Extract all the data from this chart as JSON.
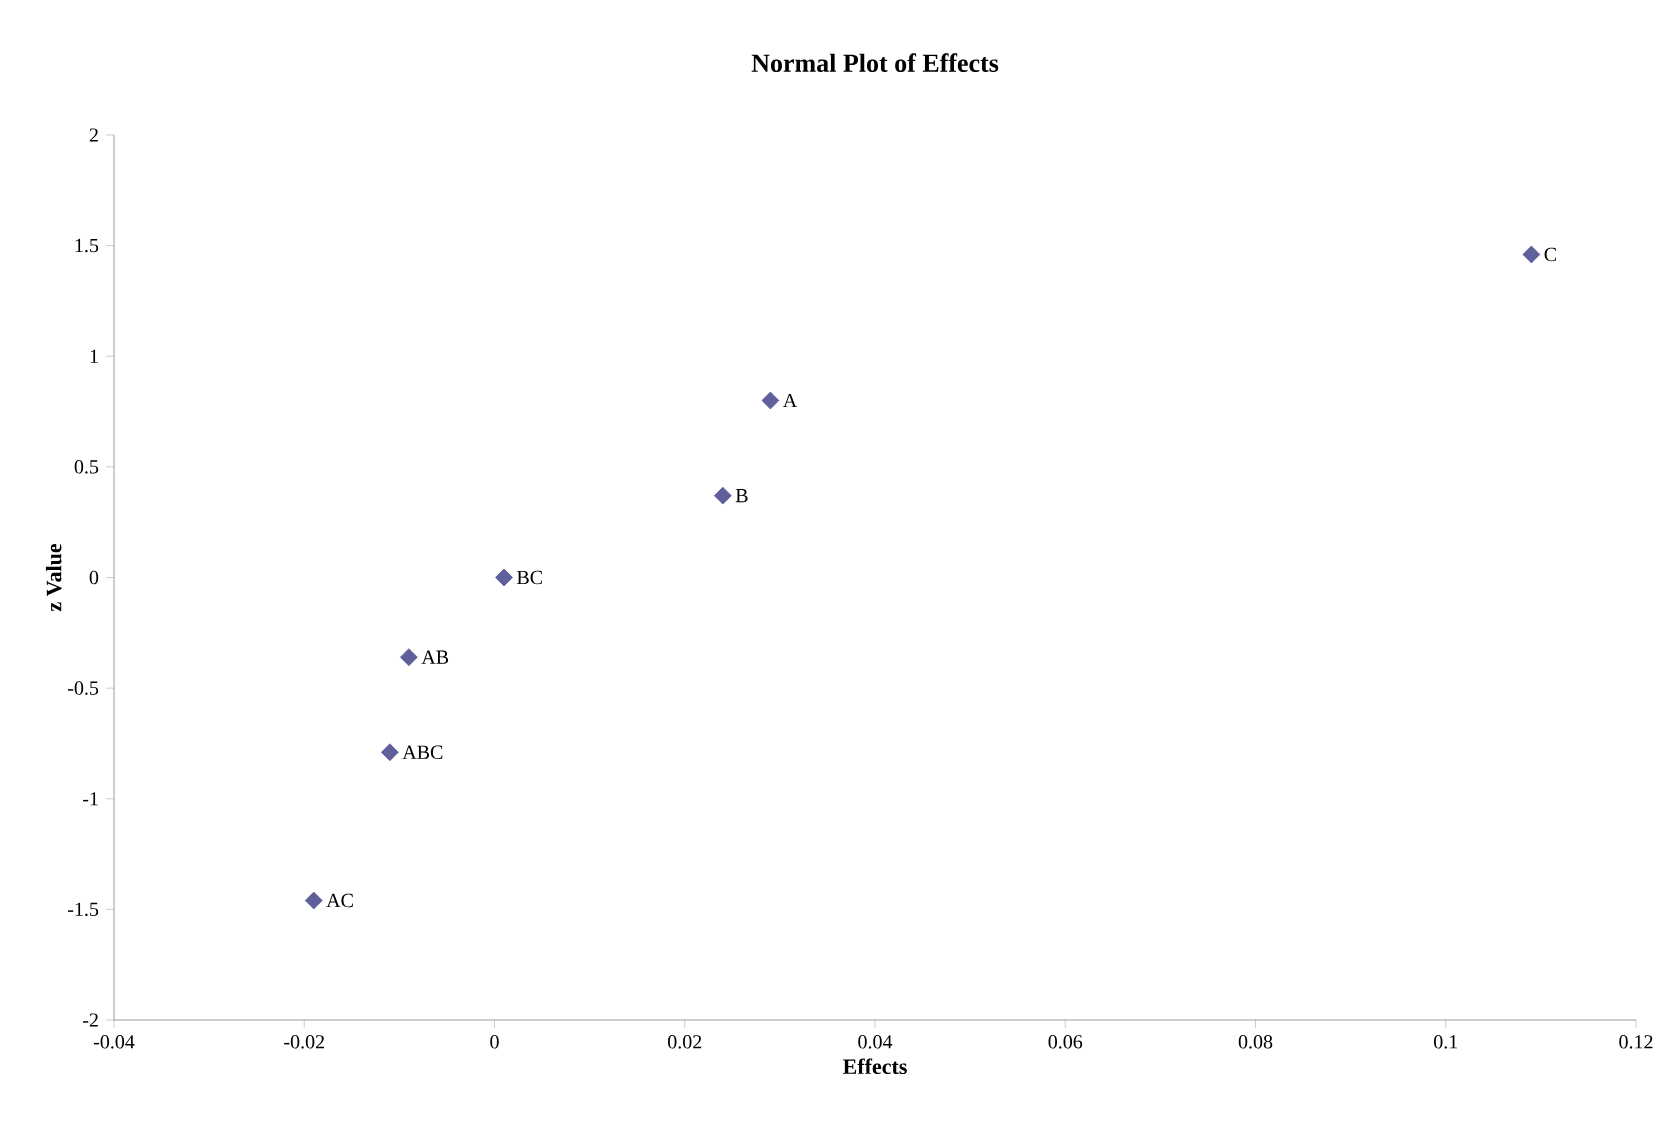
{
  "chart_data": {
    "type": "scatter",
    "title": "Normal Plot of Effects",
    "xlabel": "Effects",
    "ylabel": "z Value",
    "x": [
      0.109,
      0.029,
      0.024,
      0.001,
      -0.009,
      -0.011,
      -0.019
    ],
    "values": [
      1.46,
      0.8,
      0.37,
      0,
      -0.36,
      -0.79,
      -1.46
    ],
    "color": "#5f5f9b",
    "marker": "diamond",
    "xlim": [
      -0.04,
      0.12
    ],
    "xticks": [
      -0.04,
      -0.02,
      0,
      0.02,
      0.04,
      0.06,
      0.08,
      0.1,
      0.12
    ],
    "ylim": [
      -2,
      2
    ],
    "yticks": [
      -2,
      -1.5,
      -1,
      -0.5,
      0,
      0.5,
      1,
      1.5,
      2
    ],
    "annotations": [
      {
        "text": "C",
        "x": 0.109,
        "y": 1.46
      },
      {
        "text": "A",
        "x": 0.029,
        "y": 0.8
      },
      {
        "text": "B",
        "x": 0.024,
        "y": 0.37
      },
      {
        "text": "BC",
        "x": 0.001,
        "y": 0
      },
      {
        "text": "AB",
        "x": -0.009,
        "y": -0.36
      },
      {
        "text": "ABC",
        "x": -0.011,
        "y": -0.79
      },
      {
        "text": "AC",
        "x": -0.019,
        "y": -1.46
      }
    ],
    "grid": false
  }
}
